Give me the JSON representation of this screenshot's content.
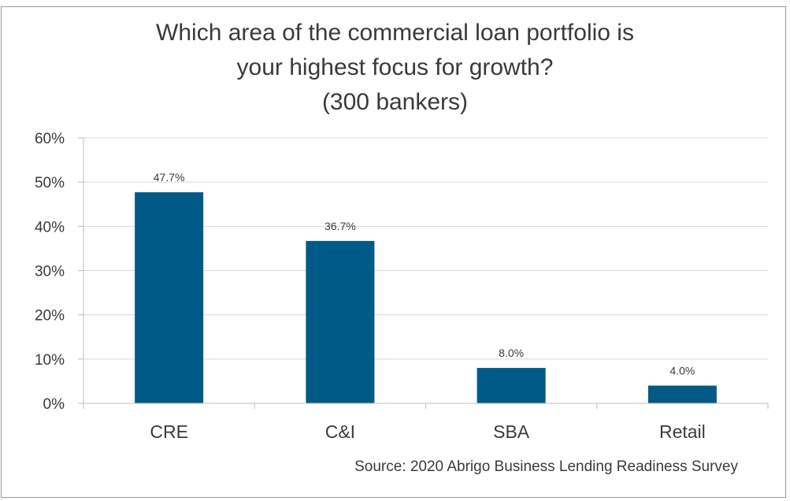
{
  "chart_data": {
    "type": "bar",
    "title_lines": [
      "Which area of the commercial loan portfolio is",
      "your highest focus for growth?",
      "(300 bankers)"
    ],
    "categories": [
      "CRE",
      "C&I",
      "SBA",
      "Retail"
    ],
    "values": [
      47.7,
      36.7,
      8.0,
      4.0
    ],
    "data_labels": [
      "47.7%",
      "36.7%",
      "8.0%",
      "4.0%"
    ],
    "y_ticks": [
      0,
      10,
      20,
      30,
      40,
      50,
      60
    ],
    "y_tick_labels": [
      "0%",
      "10%",
      "20%",
      "30%",
      "40%",
      "50%",
      "60%"
    ],
    "ylim": [
      0,
      60
    ],
    "grid": true,
    "legend": "none",
    "bar_color": "#005a87",
    "source": "Source: 2020 Abrigo Business Lending Readiness Survey"
  }
}
